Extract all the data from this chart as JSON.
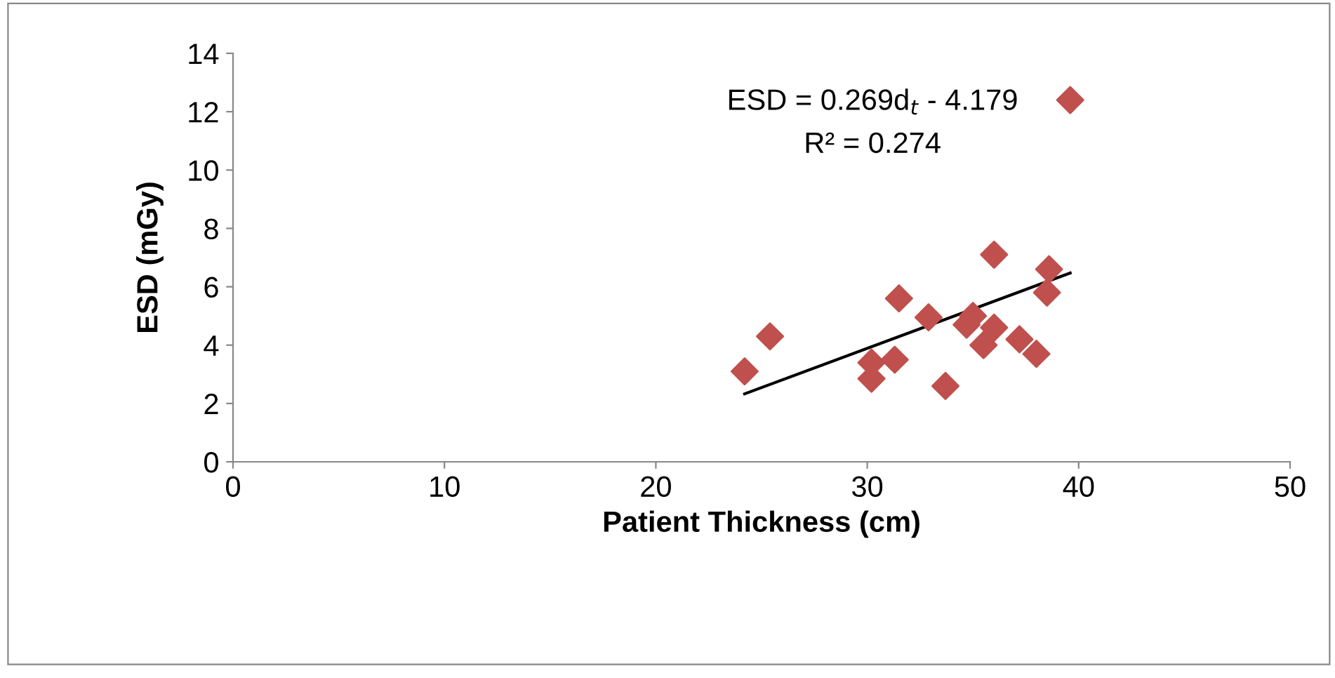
{
  "chart_data": {
    "type": "scatter",
    "xlabel": "Patient Thickness (cm)",
    "ylabel": "ESD (mGy)",
    "xlim": [
      0,
      50
    ],
    "xticks": [
      0,
      10,
      20,
      30,
      40,
      50
    ],
    "ylim": [
      0,
      14
    ],
    "yticks": [
      0,
      2,
      4,
      6,
      8,
      10,
      12,
      14
    ],
    "grid": false,
    "legend": false,
    "marker": "diamond",
    "annotations": [
      "ESD = 0.269d$_{t}$ - 4.179",
      "R² = 0.274"
    ],
    "series": [
      {
        "color": "#c0504d",
        "x": [
          24.2,
          25.4,
          30.2,
          30.2,
          31.3,
          31.5,
          32.9,
          33.7,
          34.7,
          35.0,
          35.5,
          36.0,
          36.0,
          37.2,
          38.0,
          38.5,
          38.6,
          39.6
        ],
        "values": [
          3.1,
          4.3,
          3.4,
          2.85,
          3.5,
          5.6,
          4.95,
          2.6,
          4.7,
          5.0,
          4.0,
          4.6,
          7.1,
          4.2,
          3.7,
          5.8,
          6.6,
          12.4
        ]
      },
      {
        "type": "line",
        "color": "#000000",
        "marker": "none",
        "x": [
          24.2,
          39.6
        ],
        "values": [
          2.33,
          6.47
        ]
      }
    ]
  }
}
